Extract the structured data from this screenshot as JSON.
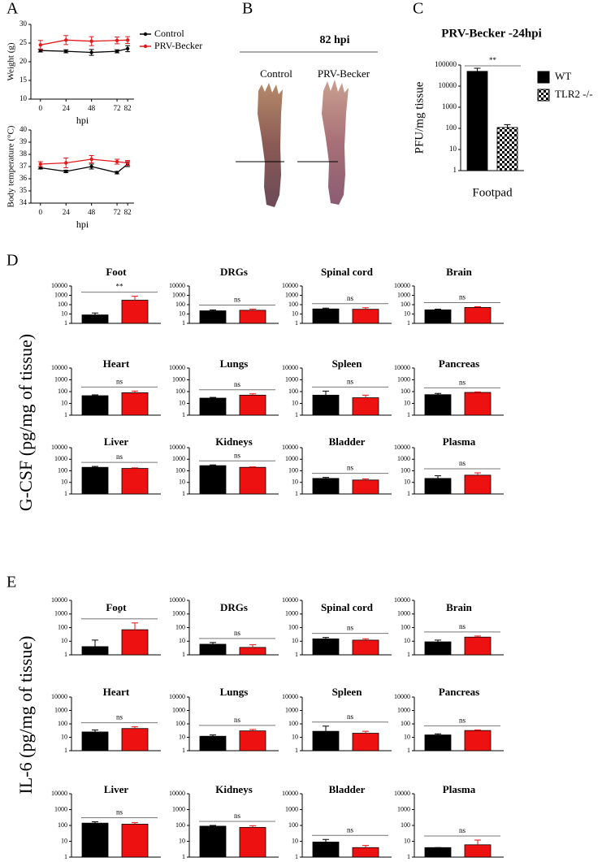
{
  "panel_labels": [
    "A",
    "B",
    "C",
    "D",
    "E"
  ],
  "photo": {
    "title": "82 hpi",
    "labels": [
      "Control",
      "PRV-Becker"
    ]
  },
  "group_labels": [
    "G-CSF (pg/mg of tissue)",
    "IL-6 (pg/mg of tissue)"
  ],
  "chart_data": [
    {
      "type": "line",
      "ylabel": "Weight (g)",
      "xlabel": "hpi",
      "x": [
        0,
        24,
        48,
        72,
        82
      ],
      "xlim": [
        -9,
        88
      ],
      "xticks": [
        0,
        24,
        48,
        72,
        82
      ],
      "ylim": [
        10,
        30
      ],
      "yticks": [
        10,
        15,
        20,
        25,
        30
      ],
      "legend": "right",
      "series": [
        {
          "name": "Control",
          "color": "#000000",
          "values": [
            23,
            22.8,
            22.5,
            22.8,
            23.5
          ],
          "errors": [
            0.4,
            0.4,
            0.8,
            0.4,
            0.8
          ]
        },
        {
          "name": "PRV-Becker",
          "color": "#e31a1c",
          "values": [
            24.5,
            25.8,
            25.5,
            25.7,
            25.8
          ],
          "errors": [
            1.2,
            1.2,
            1.2,
            0.9,
            0.9
          ]
        }
      ]
    },
    {
      "type": "line",
      "ylabel": "Body temperature (°C)",
      "xlabel": "hpi",
      "x": [
        0,
        24,
        48,
        72,
        82
      ],
      "xlim": [
        -9,
        88
      ],
      "xticks": [
        0,
        24,
        48,
        72,
        82
      ],
      "ylim": [
        34,
        40
      ],
      "yticks": [
        34,
        35,
        36,
        37,
        38,
        39,
        40
      ],
      "series": [
        {
          "color": "#000000",
          "values": [
            36.9,
            36.6,
            37.0,
            36.5,
            37.2
          ],
          "errors": [
            0.1,
            0.1,
            0.2,
            0.1,
            0.2
          ]
        },
        {
          "color": "#e31a1c",
          "values": [
            37.2,
            37.3,
            37.6,
            37.4,
            37.3
          ],
          "errors": [
            0.2,
            0.4,
            0.3,
            0.2,
            0.2
          ]
        }
      ]
    },
    {
      "type": "bar",
      "title": "PRV-Becker -24hpi",
      "ylabel": "PFU/mg tissue",
      "categories": [
        "Footpad"
      ],
      "log": true,
      "ylim": [
        1,
        100000
      ],
      "yticks": [
        1,
        10,
        100,
        1000,
        10000,
        100000
      ],
      "legend": "right",
      "annotation": "**",
      "series": [
        {
          "name": "WT",
          "color": "#000000",
          "values": [
            50000
          ],
          "errors": [
            20000
          ]
        },
        {
          "name": "TLR2 -/-",
          "color": "#000000",
          "pattern": "checker",
          "values": [
            110
          ],
          "errors": [
            40
          ]
        }
      ]
    },
    {
      "type": "bar",
      "title": "Foot",
      "log": true,
      "ylim": [
        1,
        10000
      ],
      "yticks": [
        1,
        10,
        100,
        1000,
        10000
      ],
      "colors": [
        "#000000",
        "#ee1111"
      ],
      "values": [
        8,
        300
      ],
      "errors": [
        5,
        500
      ],
      "annotation": "**"
    },
    {
      "type": "bar",
      "title": "DRGs",
      "log": true,
      "ylim": [
        1,
        10000
      ],
      "yticks": [
        1,
        10,
        100,
        1000,
        10000
      ],
      "colors": [
        "#000000",
        "#ee1111"
      ],
      "values": [
        22,
        25
      ],
      "errors": [
        5,
        8
      ],
      "annotation": "ns"
    },
    {
      "type": "bar",
      "title": "Spinal cord",
      "log": true,
      "ylim": [
        1,
        10000
      ],
      "yticks": [
        1,
        10,
        100,
        1000,
        10000
      ],
      "colors": [
        "#000000",
        "#ee1111"
      ],
      "values": [
        35,
        32
      ],
      "errors": [
        8,
        15
      ],
      "annotation": "ns"
    },
    {
      "type": "bar",
      "title": "Brain",
      "log": true,
      "ylim": [
        1,
        10000
      ],
      "yticks": [
        1,
        10,
        100,
        1000,
        10000
      ],
      "colors": [
        "#000000",
        "#ee1111"
      ],
      "values": [
        28,
        50
      ],
      "errors": [
        5,
        10
      ],
      "annotation": "ns"
    },
    {
      "type": "bar",
      "title": "Heart",
      "log": true,
      "ylim": [
        1,
        10000
      ],
      "yticks": [
        1,
        10,
        100,
        1000,
        10000
      ],
      "colors": [
        "#000000",
        "#ee1111"
      ],
      "values": [
        45,
        80
      ],
      "errors": [
        8,
        30
      ],
      "annotation": "ns"
    },
    {
      "type": "bar",
      "title": "Lungs",
      "log": true,
      "ylim": [
        1,
        10000
      ],
      "yticks": [
        1,
        10,
        100,
        1000,
        10000
      ],
      "colors": [
        "#000000",
        "#ee1111"
      ],
      "values": [
        28,
        50
      ],
      "errors": [
        4,
        15
      ],
      "annotation": "ns"
    },
    {
      "type": "bar",
      "title": "Spleen",
      "log": true,
      "ylim": [
        1,
        10000
      ],
      "yticks": [
        1,
        10,
        100,
        1000,
        10000
      ],
      "colors": [
        "#000000",
        "#ee1111"
      ],
      "values": [
        50,
        30
      ],
      "errors": [
        60,
        20
      ],
      "annotation": "ns"
    },
    {
      "type": "bar",
      "title": "Pancreas",
      "log": true,
      "ylim": [
        1,
        10000
      ],
      "yticks": [
        1,
        10,
        100,
        1000,
        10000
      ],
      "colors": [
        "#000000",
        "#ee1111"
      ],
      "values": [
        55,
        85
      ],
      "errors": [
        15,
        10
      ],
      "annotation": "ns"
    },
    {
      "type": "bar",
      "title": "Liver",
      "log": true,
      "ylim": [
        1,
        10000
      ],
      "yticks": [
        1,
        10,
        100,
        1000,
        10000
      ],
      "colors": [
        "#000000",
        "#ee1111"
      ],
      "values": [
        200,
        160
      ],
      "errors": [
        40,
        20
      ],
      "annotation": "ns"
    },
    {
      "type": "bar",
      "title": "Kidneys",
      "log": true,
      "ylim": [
        1,
        10000
      ],
      "yticks": [
        1,
        10,
        100,
        1000,
        10000
      ],
      "colors": [
        "#000000",
        "#ee1111"
      ],
      "values": [
        280,
        200
      ],
      "errors": [
        40,
        20
      ],
      "annotation": "ns"
    },
    {
      "type": "bar",
      "title": "Bladder",
      "log": true,
      "ylim": [
        1,
        10000
      ],
      "yticks": [
        1,
        10,
        100,
        1000,
        10000
      ],
      "colors": [
        "#000000",
        "#ee1111"
      ],
      "values": [
        22,
        16
      ],
      "errors": [
        5,
        4
      ],
      "annotation": "ns"
    },
    {
      "type": "bar",
      "title": "Plasma",
      "log": true,
      "ylim": [
        1,
        10000
      ],
      "yticks": [
        1,
        10,
        100,
        1000,
        10000
      ],
      "colors": [
        "#000000",
        "#ee1111"
      ],
      "values": [
        22,
        42
      ],
      "errors": [
        15,
        25
      ],
      "annotation": "ns"
    },
    {
      "type": "bar",
      "title": "Foot",
      "log": true,
      "ylim": [
        1,
        10000
      ],
      "yticks": [
        1,
        10,
        100,
        1000,
        10000
      ],
      "colors": [
        "#000000",
        "#ee1111"
      ],
      "values": [
        4,
        70
      ],
      "errors": [
        8,
        150
      ],
      "annotation": "*"
    },
    {
      "type": "bar",
      "title": "DRGs",
      "log": true,
      "ylim": [
        1,
        10000
      ],
      "yticks": [
        1,
        10,
        100,
        1000,
        10000
      ],
      "colors": [
        "#000000",
        "#ee1111"
      ],
      "values": [
        6,
        3.5
      ],
      "errors": [
        2,
        2
      ],
      "annotation": "ns"
    },
    {
      "type": "bar",
      "title": "Spinal cord",
      "log": true,
      "ylim": [
        1,
        10000
      ],
      "yticks": [
        1,
        10,
        100,
        1000,
        10000
      ],
      "colors": [
        "#000000",
        "#ee1111"
      ],
      "values": [
        15,
        12
      ],
      "errors": [
        4,
        3
      ],
      "annotation": "ns"
    },
    {
      "type": "bar",
      "title": "Brain",
      "log": true,
      "ylim": [
        1,
        10000
      ],
      "yticks": [
        1,
        10,
        100,
        1000,
        10000
      ],
      "colors": [
        "#000000",
        "#ee1111"
      ],
      "values": [
        9,
        20
      ],
      "errors": [
        3,
        4
      ],
      "annotation": "ns"
    },
    {
      "type": "bar",
      "title": "Heart",
      "log": true,
      "ylim": [
        1,
        10000
      ],
      "yticks": [
        1,
        10,
        100,
        1000,
        10000
      ],
      "colors": [
        "#000000",
        "#ee1111"
      ],
      "values": [
        25,
        45
      ],
      "errors": [
        10,
        15
      ],
      "annotation": "ns"
    },
    {
      "type": "bar",
      "title": "Lungs",
      "log": true,
      "ylim": [
        1,
        10000
      ],
      "yticks": [
        1,
        10,
        100,
        1000,
        10000
      ],
      "colors": [
        "#000000",
        "#ee1111"
      ],
      "values": [
        12,
        30
      ],
      "errors": [
        3,
        8
      ],
      "annotation": "ns"
    },
    {
      "type": "bar",
      "title": "Spleen",
      "log": true,
      "ylim": [
        1,
        10000
      ],
      "yticks": [
        1,
        10,
        100,
        1000,
        10000
      ],
      "colors": [
        "#000000",
        "#ee1111"
      ],
      "values": [
        28,
        20
      ],
      "errors": [
        40,
        8
      ],
      "annotation": "ns"
    },
    {
      "type": "bar",
      "title": "Pancreas",
      "log": true,
      "ylim": [
        1,
        10000
      ],
      "yticks": [
        1,
        10,
        100,
        1000,
        10000
      ],
      "colors": [
        "#000000",
        "#ee1111"
      ],
      "values": [
        15,
        32
      ],
      "errors": [
        3,
        4
      ],
      "annotation": "ns"
    },
    {
      "type": "bar",
      "title": "Liver",
      "log": true,
      "ylim": [
        1,
        10000
      ],
      "yticks": [
        1,
        10,
        100,
        1000,
        10000
      ],
      "colors": [
        "#000000",
        "#ee1111"
      ],
      "values": [
        140,
        120
      ],
      "errors": [
        30,
        30
      ],
      "annotation": "ns"
    },
    {
      "type": "bar",
      "title": "Kidneys",
      "log": true,
      "ylim": [
        1,
        10000
      ],
      "yticks": [
        1,
        10,
        100,
        1000,
        10000
      ],
      "colors": [
        "#000000",
        "#ee1111"
      ],
      "values": [
        90,
        75
      ],
      "errors": [
        10,
        20
      ],
      "annotation": "ns"
    },
    {
      "type": "bar",
      "title": "Bladder",
      "log": true,
      "ylim": [
        1,
        10000
      ],
      "yticks": [
        1,
        10,
        100,
        1000,
        10000
      ],
      "colors": [
        "#000000",
        "#ee1111"
      ],
      "values": [
        9,
        4
      ],
      "errors": [
        4,
        1.5
      ],
      "annotation": "ns"
    },
    {
      "type": "bar",
      "title": "Plasma",
      "log": true,
      "ylim": [
        1,
        10000
      ],
      "yticks": [
        1,
        10,
        100,
        1000,
        10000
      ],
      "colors": [
        "#000000",
        "#ee1111"
      ],
      "values": [
        4,
        6
      ],
      "errors": [
        0,
        6
      ],
      "annotation": "ns"
    }
  ]
}
